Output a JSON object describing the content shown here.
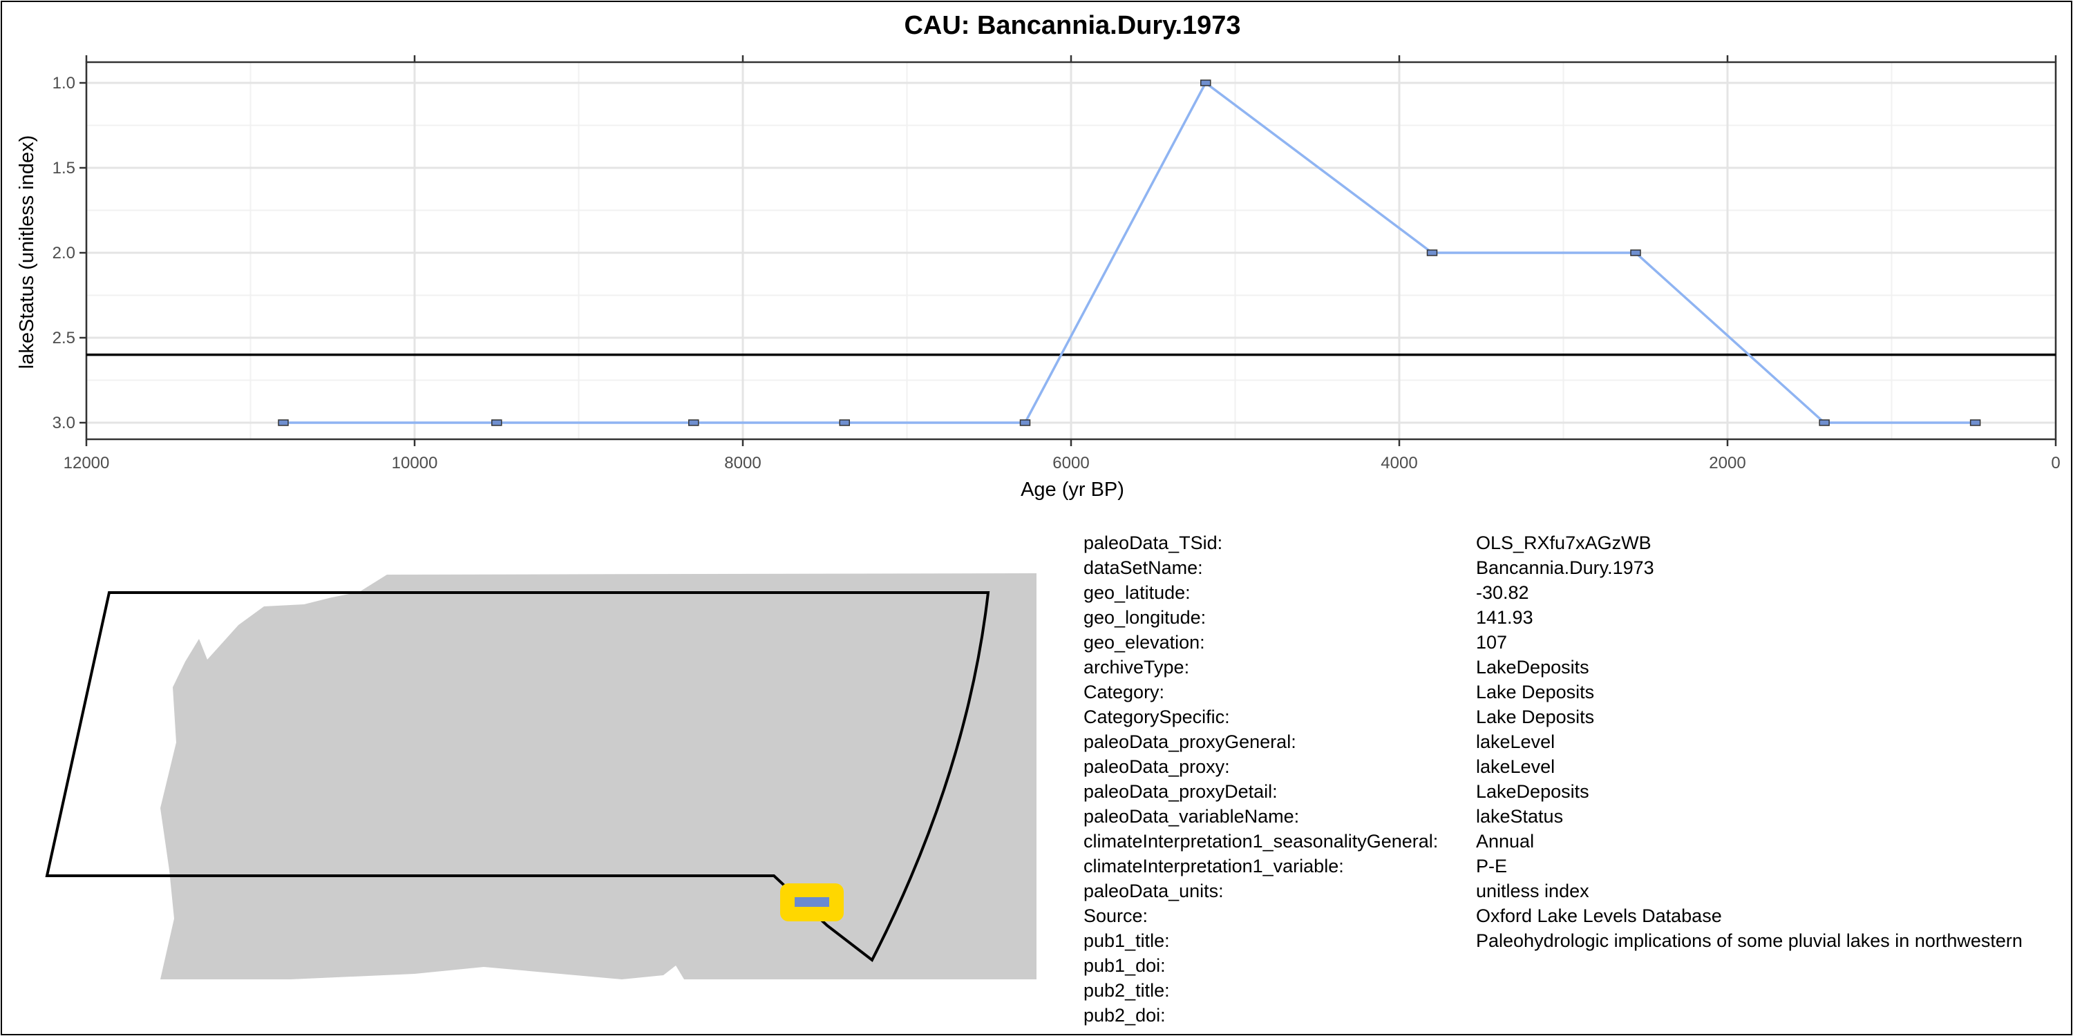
{
  "chart_data": {
    "type": "line",
    "title": "CAU: Bancannia.Dury.1973",
    "xlabel": "Age (yr BP)",
    "ylabel": "lakeStatus (unitless index)",
    "x_reversed": true,
    "y_reversed": true,
    "xlim": [
      12000,
      0
    ],
    "ylim": [
      3.0,
      1.0
    ],
    "x_ticks": [
      12000,
      10000,
      8000,
      6000,
      4000,
      2000,
      0
    ],
    "y_ticks": [
      1.0,
      1.5,
      2.0,
      2.5,
      3.0
    ],
    "x_tick_labels": [
      "12000",
      "10000",
      "8000",
      "6000",
      "4000",
      "2000",
      "0"
    ],
    "y_tick_labels": [
      "1.0",
      "1.5",
      "2.0",
      "2.5",
      "3.0"
    ],
    "reference_line_y": 2.6,
    "grid": true,
    "line_color": "#8fb4f2",
    "marker_color": "#6f8fcf",
    "series": [
      {
        "x": [
          10800,
          9500,
          8300,
          7380,
          6280,
          5180,
          3800,
          2560,
          1410,
          490
        ],
        "y": [
          3,
          3,
          3,
          3,
          3,
          1,
          2,
          2,
          3,
          3
        ]
      }
    ]
  },
  "map": {
    "land_color": "#cccccc",
    "site_marker_color": "#ffd700",
    "site_symbol_color": "#6a8ad0"
  },
  "metadata": [
    {
      "key": "paleoData_TSid:",
      "value": "OLS_RXfu7xAGzWB"
    },
    {
      "key": "dataSetName:",
      "value": "Bancannia.Dury.1973"
    },
    {
      "key": "geo_latitude:",
      "value": "-30.82"
    },
    {
      "key": "geo_longitude:",
      "value": "141.93"
    },
    {
      "key": "geo_elevation:",
      "value": "107"
    },
    {
      "key": "archiveType:",
      "value": "LakeDeposits"
    },
    {
      "key": "Category:",
      "value": "Lake Deposits"
    },
    {
      "key": "CategorySpecific:",
      "value": "Lake Deposits"
    },
    {
      "key": "paleoData_proxyGeneral:",
      "value": "lakeLevel"
    },
    {
      "key": "paleoData_proxy:",
      "value": "lakeLevel"
    },
    {
      "key": "paleoData_proxyDetail:",
      "value": "LakeDeposits"
    },
    {
      "key": "paleoData_variableName:",
      "value": "lakeStatus"
    },
    {
      "key": "climateInterpretation1_seasonalityGeneral:",
      "value": "Annual"
    },
    {
      "key": "climateInterpretation1_variable:",
      "value": "P-E"
    },
    {
      "key": "paleoData_units:",
      "value": "unitless index"
    },
    {
      "key": "Source:",
      "value": "Oxford Lake Levels Database"
    },
    {
      "key": "pub1_title:",
      "value": "Paleohydrologic implications of some pluvial lakes in northwestern"
    },
    {
      "key": "pub1_doi:",
      "value": ""
    },
    {
      "key": "pub2_title:",
      "value": ""
    },
    {
      "key": "pub2_doi:",
      "value": ""
    }
  ]
}
